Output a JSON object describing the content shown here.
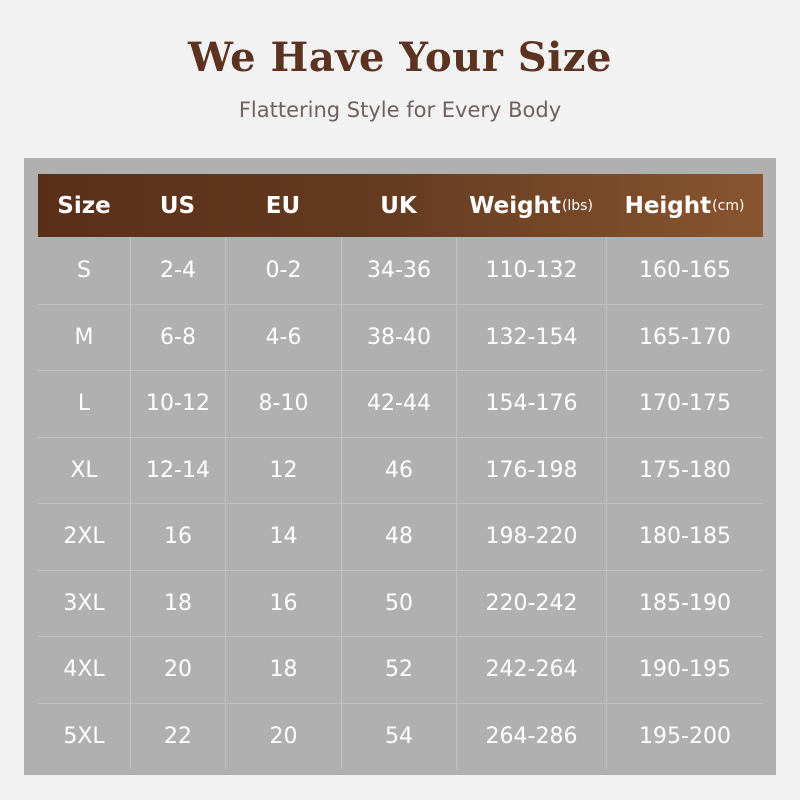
{
  "title": "We Have Your Size",
  "subtitle": "Flattering Style for Every Body",
  "colors": {
    "background": "#f3f2f2",
    "panel": "#b0b0b0",
    "header_start": "#5a2f18",
    "header_end": "#88552f",
    "title": "#5b3320"
  },
  "headers": [
    {
      "label": "Size",
      "unit": ""
    },
    {
      "label": "US",
      "unit": ""
    },
    {
      "label": "EU",
      "unit": ""
    },
    {
      "label": "UK",
      "unit": ""
    },
    {
      "label": "Weight",
      "unit": "(lbs)"
    },
    {
      "label": "Height",
      "unit": "(cm)"
    }
  ],
  "rows": [
    [
      "S",
      "2-4",
      "0-2",
      "34-36",
      "110-132",
      "160-165"
    ],
    [
      "M",
      "6-8",
      "4-6",
      "38-40",
      "132-154",
      "165-170"
    ],
    [
      "L",
      "10-12",
      "8-10",
      "42-44",
      "154-176",
      "170-175"
    ],
    [
      "XL",
      "12-14",
      "12",
      "46",
      "176-198",
      "175-180"
    ],
    [
      "2XL",
      "16",
      "14",
      "48",
      "198-220",
      "180-185"
    ],
    [
      "3XL",
      "18",
      "16",
      "50",
      "220-242",
      "185-190"
    ],
    [
      "4XL",
      "20",
      "18",
      "52",
      "242-264",
      "190-195"
    ],
    [
      "5XL",
      "22",
      "20",
      "54",
      "264-286",
      "195-200"
    ]
  ]
}
